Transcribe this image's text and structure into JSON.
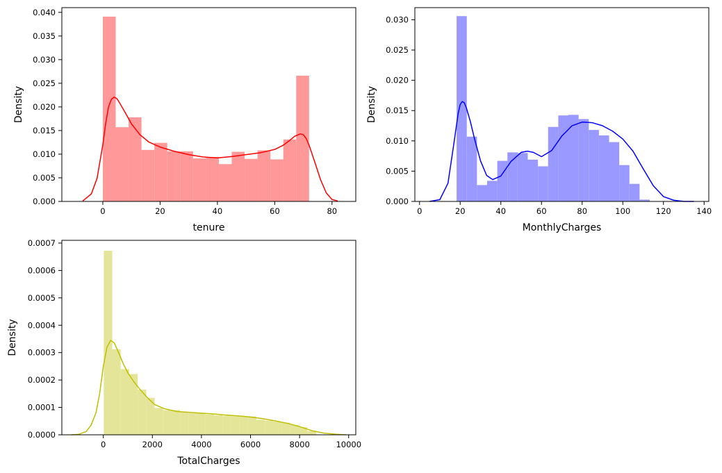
{
  "chart_data": [
    {
      "type": "bar",
      "kind": "histogram-with-kde",
      "xlabel": "tenure",
      "ylabel": "Density",
      "xlim": [
        -14.3,
        88.3
      ],
      "ylim": [
        0,
        0.041
      ],
      "xticks": [
        0,
        20,
        40,
        60,
        80
      ],
      "yticks": [
        0,
        0.005,
        0.01,
        0.015,
        0.02,
        0.025,
        0.03,
        0.035,
        0.04
      ],
      "ytick_labels": [
        "0.000",
        "0.005",
        "0.010",
        "0.015",
        "0.020",
        "0.025",
        "0.030",
        "0.035",
        "0.040"
      ],
      "grid": false,
      "bar_color": "#ff9999",
      "line_color": "#ff0000",
      "bin_edges": [
        0,
        4.5,
        9,
        13.5,
        18,
        22.5,
        27,
        31.5,
        36,
        40.5,
        45,
        49.5,
        54,
        58.5,
        63,
        67.5,
        72
      ],
      "values": [
        0.0391,
        0.0157,
        0.0178,
        0.0109,
        0.0124,
        0.0106,
        0.0106,
        0.0091,
        0.0094,
        0.0079,
        0.0105,
        0.009,
        0.0108,
        0.0089,
        0.0131,
        0.0266
      ],
      "kde": {
        "x": [
          -7,
          -4,
          -2,
          0,
          1,
          2,
          3,
          4,
          5,
          6,
          8,
          10,
          13,
          16,
          20,
          25,
          30,
          35,
          40,
          45,
          50,
          55,
          60,
          63,
          65,
          67,
          69,
          70,
          71,
          72,
          74,
          76,
          78,
          80,
          82
        ],
        "y": [
          0.0001,
          0.0016,
          0.0049,
          0.012,
          0.0165,
          0.02,
          0.0216,
          0.0221,
          0.0217,
          0.0207,
          0.0186,
          0.0164,
          0.0141,
          0.0126,
          0.0115,
          0.0106,
          0.0099,
          0.0094,
          0.0092,
          0.0095,
          0.0099,
          0.0103,
          0.011,
          0.0119,
          0.0128,
          0.0138,
          0.0143,
          0.0141,
          0.0133,
          0.0119,
          0.0083,
          0.0046,
          0.0018,
          0.0004,
          0.0001
        ]
      }
    },
    {
      "type": "bar",
      "kind": "histogram-with-kde",
      "xlabel": "MonthlyCharges",
      "ylabel": "Density",
      "xlim": [
        -2.3,
        142.3
      ],
      "ylim": [
        0,
        0.032
      ],
      "xticks": [
        0,
        20,
        40,
        60,
        80,
        100,
        120,
        140
      ],
      "yticks": [
        0,
        0.005,
        0.01,
        0.015,
        0.02,
        0.025,
        0.03
      ],
      "ytick_labels": [
        "0.000",
        "0.005",
        "0.010",
        "0.015",
        "0.020",
        "0.025",
        "0.030"
      ],
      "grid": false,
      "bar_color": "#9999ff",
      "line_color": "#0000ff",
      "bin_edges": [
        18.25,
        23.25,
        28.25,
        33.25,
        38.25,
        43.25,
        48.25,
        53.25,
        58.25,
        63.25,
        68.25,
        73.25,
        78.25,
        83.25,
        88.25,
        93.25,
        98.25,
        103.25,
        108.25,
        113.25,
        118.75
      ],
      "values": [
        0.0306,
        0.0107,
        0.0027,
        0.0034,
        0.0067,
        0.0081,
        0.008,
        0.0069,
        0.0058,
        0.0123,
        0.0142,
        0.0143,
        0.0136,
        0.0118,
        0.0109,
        0.0098,
        0.006,
        0.0029,
        0.0003,
        0.0
      ],
      "kde": {
        "x": [
          5,
          10,
          14,
          17,
          19,
          20,
          21,
          22,
          23,
          25,
          27,
          30,
          33,
          36,
          40,
          45,
          50,
          53,
          56,
          60,
          65,
          70,
          75,
          80,
          85,
          90,
          95,
          100,
          105,
          110,
          115,
          120,
          125,
          130,
          135
        ],
        "y": [
          0.0,
          0.0003,
          0.003,
          0.0098,
          0.0145,
          0.016,
          0.0165,
          0.0163,
          0.0155,
          0.0132,
          0.0104,
          0.0067,
          0.0043,
          0.0036,
          0.0042,
          0.0066,
          0.0081,
          0.0083,
          0.0081,
          0.0074,
          0.0084,
          0.0108,
          0.0125,
          0.0131,
          0.013,
          0.0125,
          0.0116,
          0.0103,
          0.0083,
          0.0054,
          0.0026,
          0.0008,
          0.0002,
          0.0,
          0.0
        ]
      }
    },
    {
      "type": "bar",
      "kind": "histogram-with-kde",
      "xlabel": "TotalCharges",
      "ylabel": "Density",
      "xlim": [
        -1690,
        10290
      ],
      "ylim": [
        0,
        0.00071
      ],
      "xticks": [
        0,
        2000,
        4000,
        6000,
        8000,
        10000
      ],
      "yticks": [
        0,
        0.0001,
        0.0002,
        0.0003,
        0.0004,
        0.0005,
        0.0006,
        0.0007
      ],
      "ytick_labels": [
        "0.0000",
        "0.0001",
        "0.0002",
        "0.0003",
        "0.0004",
        "0.0005",
        "0.0006",
        "0.0007"
      ],
      "grid": false,
      "bar_color": "#e5e599",
      "line_color": "#bfbf00",
      "bin_edges": [
        18.8,
        364.4,
        710.0,
        1055.6,
        1401.2,
        1746.8,
        2092.4,
        2438.0,
        2783.6,
        3129.2,
        3474.8,
        3820.4,
        4166.0,
        4511.6,
        4857.2,
        5202.8,
        5548.4,
        5894.0,
        6239.6,
        6585.2,
        6930.8,
        7276.4,
        7622.0,
        7967.6,
        8313.2,
        8684.8
      ],
      "values": [
        0.000672,
        0.000312,
        0.00024,
        0.000222,
        0.000165,
        0.000135,
        9.8e-05,
        9e-05,
        9e-05,
        8.2e-05,
        7.9e-05,
        8e-05,
        7.4e-05,
        7.1e-05,
        6.9e-05,
        6.8e-05,
        6.6e-05,
        6.7e-05,
        5.5e-05,
        5.2e-05,
        4.8e-05,
        4.4e-05,
        3.6e-05,
        2.8e-05,
        1.4e-05
      ],
      "kde": {
        "x": [
          -1300,
          -1000,
          -700,
          -500,
          -300,
          -150,
          0,
          150,
          300,
          450,
          600,
          800,
          1000,
          1250,
          1500,
          1800,
          2100,
          2500,
          3000,
          3500,
          4000,
          4500,
          5000,
          5500,
          6000,
          6500,
          7000,
          7500,
          8000,
          8500,
          9000,
          9500,
          9900
        ],
        "y": [
          0.0,
          2e-06,
          1.2e-05,
          3.5e-05,
          8e-05,
          0.00015,
          0.00025,
          0.00032,
          0.000345,
          0.000335,
          0.000305,
          0.000262,
          0.000226,
          0.000193,
          0.000165,
          0.000135,
          0.00011,
          9.5e-05,
          8.5e-05,
          8.2e-05,
          7.9e-05,
          7.6e-05,
          7.2e-05,
          6.9e-05,
          6.5e-05,
          5.9e-05,
          5.1e-05,
          4.2e-05,
          3e-05,
          1.5e-05,
          6e-06,
          2e-06,
          0.0
        ]
      }
    }
  ]
}
